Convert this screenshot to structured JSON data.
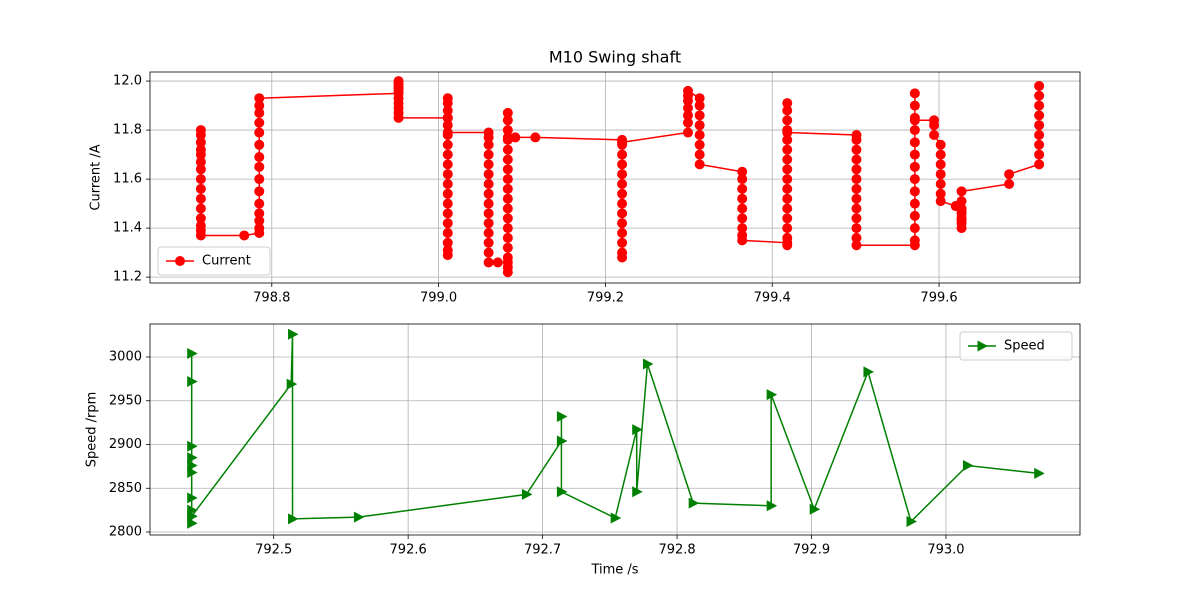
{
  "chart_data": [
    {
      "type": "line",
      "title": "M10 Swing shaft",
      "ylabel": "Current /A",
      "x": [
        798.715,
        798.715,
        798.715,
        798.715,
        798.715,
        798.715,
        798.715,
        798.715,
        798.715,
        798.715,
        798.715,
        798.715,
        798.715,
        798.715,
        798.715,
        798.767,
        798.785,
        798.785,
        798.785,
        798.785,
        798.785,
        798.785,
        798.785,
        798.785,
        798.785,
        798.785,
        798.785,
        798.785,
        798.785,
        798.785,
        798.785,
        798.952,
        798.952,
        798.952,
        798.952,
        798.952,
        798.952,
        798.952,
        798.952,
        798.952,
        798.952,
        798.952,
        799.011,
        799.011,
        799.011,
        799.011,
        799.011,
        799.011,
        799.011,
        799.011,
        799.011,
        799.011,
        799.011,
        799.011,
        799.011,
        799.011,
        799.011,
        799.011,
        799.011,
        799.011,
        799.011,
        799.011,
        799.011,
        799.06,
        799.06,
        799.06,
        799.06,
        799.06,
        799.06,
        799.06,
        799.06,
        799.06,
        799.06,
        799.06,
        799.06,
        799.06,
        799.06,
        799.06,
        799.071,
        799.083,
        799.083,
        799.083,
        799.083,
        799.083,
        799.083,
        799.083,
        799.083,
        799.083,
        799.083,
        799.083,
        799.083,
        799.083,
        799.083,
        799.083,
        799.083,
        799.083,
        799.083,
        799.083,
        799.083,
        799.092,
        799.116,
        799.22,
        799.22,
        799.22,
        799.22,
        799.22,
        799.22,
        799.22,
        799.22,
        799.22,
        799.22,
        799.22,
        799.22,
        799.22,
        799.22,
        799.22,
        799.299,
        799.299,
        799.299,
        799.299,
        799.299,
        799.299,
        799.299,
        799.313,
        799.313,
        799.313,
        799.313,
        799.313,
        799.313,
        799.313,
        799.313,
        799.364,
        799.364,
        799.364,
        799.364,
        799.364,
        799.364,
        799.364,
        799.364,
        799.364,
        799.418,
        799.418,
        799.418,
        799.418,
        799.418,
        799.418,
        799.418,
        799.418,
        799.418,
        799.418,
        799.418,
        799.418,
        799.418,
        799.418,
        799.418,
        799.418,
        799.418,
        799.418,
        799.501,
        799.501,
        799.501,
        799.501,
        799.501,
        799.501,
        799.501,
        799.501,
        799.501,
        799.501,
        799.501,
        799.501,
        799.501,
        799.571,
        799.571,
        799.571,
        799.571,
        799.571,
        799.571,
        799.571,
        799.571,
        799.571,
        799.571,
        799.571,
        799.571,
        799.571,
        799.571,
        799.571,
        799.594,
        799.594,
        799.594,
        799.602,
        799.602,
        799.602,
        799.602,
        799.602,
        799.602,
        799.602,
        799.62,
        799.627,
        799.627,
        799.627,
        799.627,
        799.627,
        799.627,
        799.627,
        799.627,
        799.627,
        799.684,
        799.684,
        799.72,
        799.72,
        799.72,
        799.72,
        799.72,
        799.72,
        799.72,
        799.72,
        799.72
      ],
      "series": [
        {
          "name": "Current",
          "color": "#ff0000",
          "marker": "circle",
          "values": [
            11.8,
            11.78,
            11.75,
            11.72,
            11.7,
            11.67,
            11.64,
            11.6,
            11.56,
            11.52,
            11.48,
            11.44,
            11.41,
            11.39,
            11.37,
            11.37,
            11.38,
            11.4,
            11.43,
            11.46,
            11.5,
            11.55,
            11.6,
            11.65,
            11.69,
            11.74,
            11.79,
            11.83,
            11.87,
            11.9,
            11.93,
            11.95,
            11.97,
            11.99,
            12.0,
            11.98,
            11.96,
            11.93,
            11.91,
            11.89,
            11.87,
            11.85,
            11.85,
            11.93,
            11.91,
            11.88,
            11.85,
            11.82,
            11.78,
            11.74,
            11.7,
            11.66,
            11.62,
            11.58,
            11.54,
            11.5,
            11.46,
            11.42,
            11.38,
            11.34,
            11.31,
            11.29,
            11.79,
            11.79,
            11.77,
            11.74,
            11.7,
            11.66,
            11.62,
            11.58,
            11.54,
            11.5,
            11.46,
            11.42,
            11.38,
            11.34,
            11.3,
            11.26,
            11.26,
            11.26,
            11.22,
            11.24,
            11.28,
            11.32,
            11.36,
            11.4,
            11.44,
            11.48,
            11.52,
            11.56,
            11.6,
            11.64,
            11.68,
            11.72,
            11.76,
            11.8,
            11.84,
            11.87,
            11.77,
            11.77,
            11.77,
            11.76,
            11.74,
            11.7,
            11.66,
            11.62,
            11.58,
            11.54,
            11.5,
            11.46,
            11.42,
            11.38,
            11.34,
            11.3,
            11.28,
            11.75,
            11.79,
            11.83,
            11.86,
            11.89,
            11.92,
            11.94,
            11.96,
            11.93,
            11.9,
            11.86,
            11.82,
            11.78,
            11.74,
            11.7,
            11.66,
            11.63,
            11.6,
            11.56,
            11.52,
            11.48,
            11.44,
            11.4,
            11.37,
            11.35,
            11.34,
            11.33,
            11.36,
            11.4,
            11.44,
            11.48,
            11.52,
            11.56,
            11.6,
            11.64,
            11.68,
            11.72,
            11.76,
            11.8,
            11.84,
            11.88,
            11.91,
            11.79,
            11.78,
            11.76,
            11.72,
            11.68,
            11.64,
            11.6,
            11.56,
            11.52,
            11.48,
            11.44,
            11.4,
            11.36,
            11.33,
            11.33,
            11.35,
            11.4,
            11.45,
            11.5,
            11.55,
            11.6,
            11.65,
            11.7,
            11.75,
            11.8,
            11.85,
            11.9,
            11.95,
            11.84,
            11.84,
            11.82,
            11.78,
            11.74,
            11.7,
            11.66,
            11.62,
            11.58,
            11.54,
            11.51,
            11.49,
            11.48,
            11.46,
            11.44,
            11.42,
            11.4,
            11.43,
            11.47,
            11.51,
            11.55,
            11.58,
            11.62,
            11.66,
            11.7,
            11.74,
            11.78,
            11.82,
            11.86,
            11.9,
            11.94,
            11.98
          ]
        }
      ],
      "xlim": [
        798.654,
        799.769
      ],
      "ylim": [
        11.176,
        12.037
      ],
      "xticks": [
        798.8,
        {
          "value": 799.0,
          "label": "799.0"
        },
        799.2,
        799.4,
        799.6
      ],
      "yticks": [
        11.2,
        11.4,
        11.6,
        11.8,
        {
          "value": 12.0,
          "label": "12.0"
        }
      ],
      "grid": true,
      "legend": "lower left"
    },
    {
      "type": "line",
      "xlabel": "Time /s",
      "ylabel": "Speed /rpm",
      "x": [
        792.439,
        792.439,
        792.439,
        792.439,
        792.439,
        792.439,
        792.439,
        792.439,
        792.439,
        792.439,
        792.439,
        792.513,
        792.514,
        792.514,
        792.563,
        792.688,
        792.714,
        792.714,
        792.714,
        792.754,
        792.77,
        792.77,
        792.778,
        792.812,
        792.87,
        792.87,
        792.902,
        792.942,
        792.974,
        793.016,
        793.069
      ],
      "series": [
        {
          "name": "Speed",
          "color": "#008000",
          "marker": "triangle-right",
          "values": [
            3004,
            2972,
            2898,
            2885,
            2876,
            2868,
            2839,
            2825,
            2818,
            2810,
            2818,
            2969,
            3026,
            2815,
            2817,
            2843,
            2904,
            2932,
            2846,
            2816,
            2917,
            2846,
            2992,
            2833,
            2830,
            2957,
            2826,
            2983,
            2812,
            2876,
            2867
          ]
        }
      ],
      "xlim": [
        792.408,
        793.0997
      ],
      "ylim": [
        2796.6,
        3037.7
      ],
      "xticks": [
        792.5,
        792.6,
        792.7,
        792.8,
        792.9,
        {
          "value": 793.0,
          "label": "793.0"
        }
      ],
      "yticks": [
        2800,
        2850,
        2900,
        2950,
        3000
      ],
      "grid": true,
      "legend": "upper right"
    }
  ]
}
